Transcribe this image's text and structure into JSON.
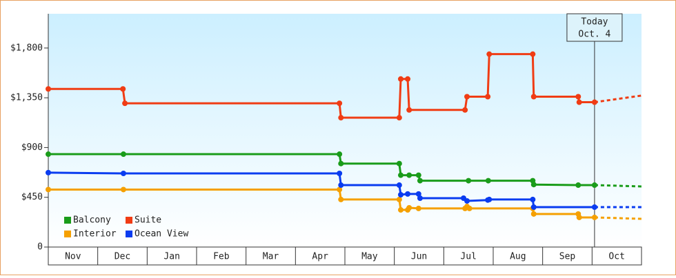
{
  "chart_data": {
    "type": "step-line",
    "ylim": [
      0,
      2110
    ],
    "yticks": [
      0,
      {
        "value": 450,
        "label": "$450"
      },
      {
        "value": 900,
        "label": "$900"
      },
      {
        "value": 1350,
        "label": "$1,350"
      },
      {
        "value": 1800,
        "label": "$1,800"
      }
    ],
    "xlim": [
      0,
      12
    ],
    "xticks": [
      {
        "value": 0.5,
        "label": "Nov"
      },
      {
        "value": 1.5,
        "label": "Dec"
      },
      {
        "value": 2.5,
        "label": "Jan"
      },
      {
        "value": 3.5,
        "label": "Feb"
      },
      {
        "value": 4.5,
        "label": "Mar"
      },
      {
        "value": 5.5,
        "label": "Apr"
      },
      {
        "value": 6.5,
        "label": "May"
      },
      {
        "value": 7.5,
        "label": "Jun"
      },
      {
        "value": 8.5,
        "label": "Jul"
      },
      {
        "value": 9.5,
        "label": "Aug"
      },
      {
        "value": 10.5,
        "label": "Sep"
      },
      {
        "value": 11.5,
        "label": "Oct"
      }
    ],
    "today": {
      "x": 11.05,
      "label": "Today",
      "date": "Oct. 4"
    },
    "series": [
      {
        "name": "Balcony",
        "color": "#1a9c1a",
        "x": [
          0,
          1.52,
          5.89,
          5.92,
          7.1,
          7.13,
          7.3,
          7.49,
          7.52,
          8.5,
          8.9,
          9.8,
          9.82,
          10.72,
          11.05,
          12
        ],
        "values": [
          840,
          840,
          840,
          755,
          755,
          650,
          650,
          650,
          600,
          600,
          600,
          600,
          565,
          560,
          560,
          548
        ]
      },
      {
        "name": "Suite",
        "color": "#f03c14",
        "x": [
          0,
          1.51,
          1.55,
          5.89,
          5.92,
          7.1,
          7.13,
          7.27,
          7.3,
          8.43,
          8.47,
          8.89,
          8.92,
          9.8,
          9.82,
          10.72,
          10.74,
          11.05,
          12
        ],
        "values": [
          1430,
          1430,
          1300,
          1300,
          1170,
          1170,
          1520,
          1520,
          1240,
          1240,
          1360,
          1360,
          1745,
          1745,
          1360,
          1360,
          1310,
          1310,
          1370
        ]
      },
      {
        "name": "Interior",
        "color": "#f5a000",
        "x": [
          0,
          1.52,
          5.89,
          5.92,
          7.1,
          7.13,
          7.27,
          7.3,
          7.49,
          8.43,
          8.47,
          8.52,
          9.8,
          9.82,
          10.72,
          10.74,
          11.05,
          12
        ],
        "values": [
          520,
          520,
          520,
          430,
          430,
          336,
          336,
          355,
          349,
          349,
          367,
          349,
          349,
          299,
          299,
          268,
          268,
          255
        ]
      },
      {
        "name": "Ocean View",
        "color": "#0a3cf0",
        "x": [
          0,
          1.52,
          5.89,
          5.92,
          7.1,
          7.13,
          7.27,
          7.49,
          7.52,
          8.4,
          8.47,
          8.89,
          8.92,
          9.8,
          9.82,
          11.05,
          12
        ],
        "values": [
          673,
          666,
          666,
          560,
          560,
          473,
          480,
          480,
          442,
          442,
          417,
          425,
          430,
          430,
          361,
          361,
          361
        ]
      }
    ]
  }
}
